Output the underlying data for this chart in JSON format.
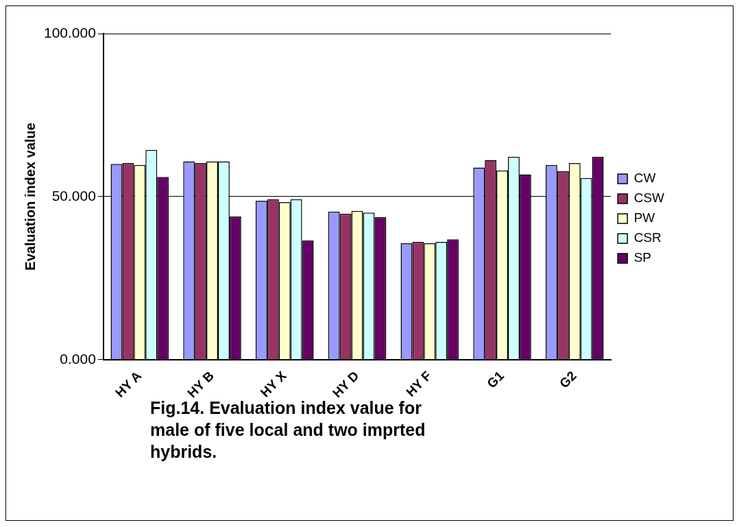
{
  "chart_data": {
    "type": "bar",
    "title": "Fig.14. Evaluation index value for male of five local and two imprted hybrids.",
    "ylabel": "Evaluation index value",
    "categories": [
      "HY A",
      "HY B",
      "HY X",
      "HY D",
      "HY F",
      "G1",
      "G2"
    ],
    "series": [
      {
        "name": "CW",
        "color": "#9999ff",
        "values": [
          60,
          60.8,
          48.7,
          45.4,
          35.7,
          58.9,
          59.7
        ]
      },
      {
        "name": "CSW",
        "color": "#993366",
        "values": [
          60.3,
          60.3,
          49.2,
          44.7,
          36.1,
          61.2,
          57.8
        ]
      },
      {
        "name": "PW",
        "color": "#ffffcc",
        "values": [
          59.7,
          60.8,
          48.3,
          45.6,
          35.7,
          58,
          60.3
        ]
      },
      {
        "name": "CSR",
        "color": "#ccffff",
        "values": [
          64.3,
          60.8,
          49.2,
          45.1,
          36.1,
          62.2,
          55.7
        ]
      },
      {
        "name": "SP",
        "color": "#660066",
        "values": [
          56,
          43.9,
          36.5,
          43.7,
          36.9,
          56.8,
          62.2
        ]
      }
    ],
    "ylim": [
      0,
      100
    ],
    "yticks": [
      {
        "value": 0,
        "label": "0.000"
      },
      {
        "value": 50,
        "label": "50.000"
      },
      {
        "value": 100,
        "label": "100.000"
      }
    ],
    "grid": "y",
    "legend": "right"
  }
}
